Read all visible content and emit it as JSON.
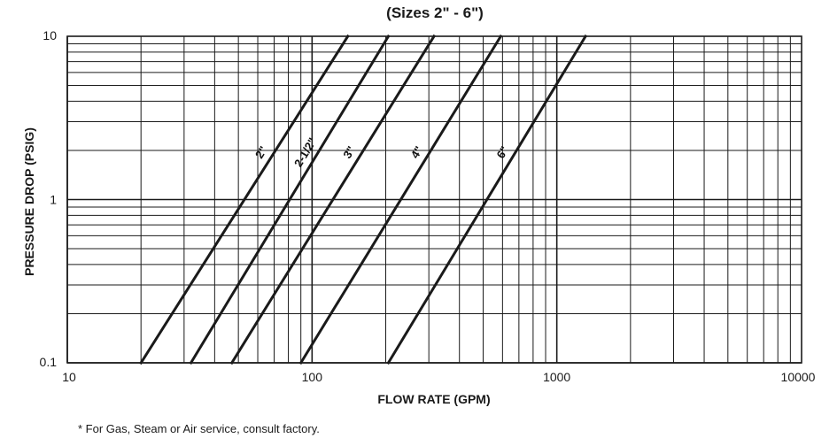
{
  "chart_data": {
    "type": "line",
    "title": "(Sizes 2\" - 6\")",
    "xlabel": "FLOW RATE (GPM)",
    "ylabel": "PRESSURE DROP (PSIG)",
    "x_scale": "log",
    "y_scale": "log",
    "xlim": [
      10,
      10000
    ],
    "ylim": [
      0.1,
      10
    ],
    "x_ticks": [
      "10",
      "100",
      "1000",
      "10000"
    ],
    "y_ticks": [
      "0.1",
      "1",
      "10"
    ],
    "grid": true,
    "legend": "none",
    "line_color": "#1a1a1a",
    "series": [
      {
        "name": "2\"",
        "x": [
          20,
          140
        ],
        "y": [
          0.1,
          10
        ]
      },
      {
        "name": "2-1/2\"",
        "x": [
          32,
          205
        ],
        "y": [
          0.1,
          10
        ]
      },
      {
        "name": "3\"",
        "x": [
          47,
          315
        ],
        "y": [
          0.1,
          10
        ]
      },
      {
        "name": "4\"",
        "x": [
          90,
          590
        ],
        "y": [
          0.1,
          10
        ]
      },
      {
        "name": "6\"",
        "x": [
          205,
          1310
        ],
        "y": [
          0.1,
          10
        ]
      }
    ]
  },
  "footnote": "* For Gas, Steam or Air service, consult factory."
}
